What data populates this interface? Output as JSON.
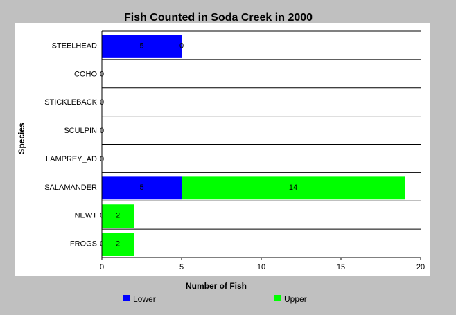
{
  "chart_data": {
    "type": "bar",
    "orientation": "horizontal",
    "stacked": true,
    "title": "Fish Counted in Soda Creek in 2000",
    "xlabel": "Number of Fish",
    "ylabel": "Species",
    "xlim": [
      0,
      20
    ],
    "xticks": [
      0,
      5,
      10,
      15,
      20
    ],
    "grid": false,
    "legend_position": "bottom",
    "categories": [
      "STEELHEAD",
      "COHO",
      "STICKLEBACK",
      "SCULPIN",
      "LAMPREY_AD",
      "SALAMANDER",
      "NEWT",
      "FROGS"
    ],
    "series": [
      {
        "name": "Lower",
        "color": "#0000ff",
        "values": [
          5,
          0,
          0,
          0,
          0,
          5,
          0,
          0
        ],
        "labels": [
          "5",
          "0",
          "0",
          "0",
          "0",
          "5",
          "0",
          "0"
        ]
      },
      {
        "name": "Upper",
        "color": "#00ff00",
        "values": [
          0,
          null,
          null,
          null,
          null,
          14,
          2,
          2
        ],
        "labels": [
          "0",
          "",
          "",
          "",
          "",
          "14",
          "2",
          "2"
        ]
      }
    ]
  }
}
